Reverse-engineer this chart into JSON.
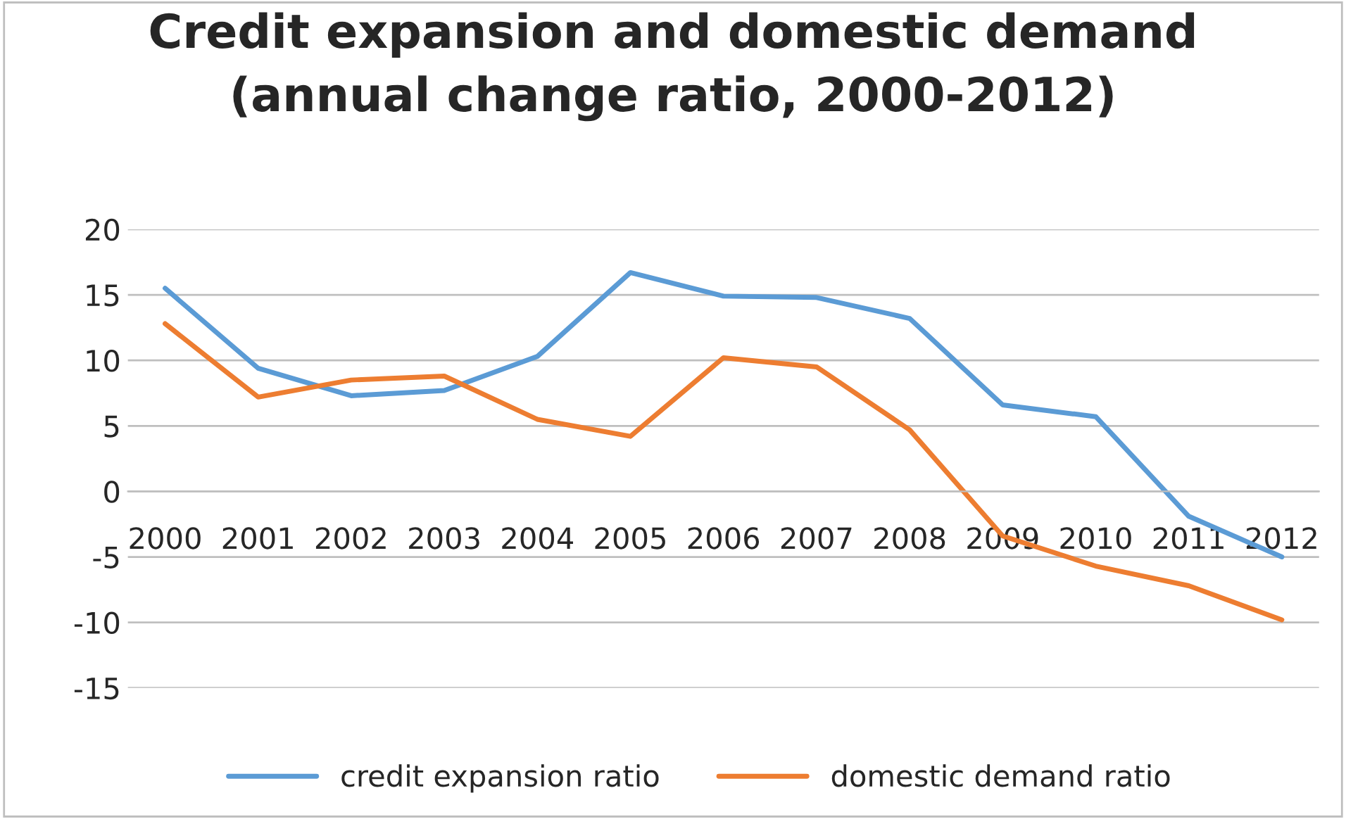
{
  "chart_data": {
    "type": "line",
    "title": "Credit expansion and domestic demand\n(annual change ratio, 2000-2012)",
    "categories": [
      "2000",
      "2001",
      "2002",
      "2003",
      "2004",
      "2005",
      "2006",
      "2007",
      "2008",
      "2009",
      "2010",
      "2011",
      "2012"
    ],
    "series": [
      {
        "name": "credit expansion ratio",
        "color": "#5b9bd5",
        "values": [
          15.5,
          9.4,
          7.3,
          7.7,
          10.3,
          16.7,
          14.9,
          14.8,
          13.2,
          6.6,
          5.7,
          -1.9,
          -5.0
        ]
      },
      {
        "name": "domestic demand ratio",
        "color": "#ed7d31",
        "values": [
          12.8,
          7.2,
          8.5,
          8.8,
          5.5,
          4.2,
          10.2,
          9.5,
          4.7,
          -3.4,
          -5.7,
          -7.2,
          -9.8
        ]
      }
    ],
    "ylim": [
      -15,
      20
    ],
    "yticks": [
      -15,
      -10,
      -5,
      0,
      5,
      10,
      15,
      20
    ],
    "grid": "y",
    "legend": "bottom",
    "marker": "none",
    "line_style": "solid"
  }
}
